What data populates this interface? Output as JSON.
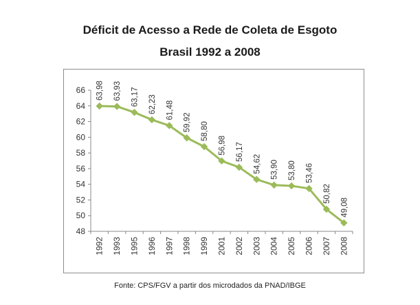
{
  "chart_data": {
    "type": "line",
    "title": "Déficit de Acesso a Rede de Coleta de Esgoto",
    "subtitle": "Brasil 1992 a 2008",
    "categories": [
      "1992",
      "1993",
      "1995",
      "1996",
      "1997",
      "1998",
      "1999",
      "2001",
      "2002",
      "2003",
      "2004",
      "2005",
      "2006",
      "2007",
      "2008"
    ],
    "values": [
      63.98,
      63.93,
      63.17,
      62.23,
      61.48,
      59.92,
      58.8,
      56.98,
      56.17,
      54.62,
      53.9,
      53.8,
      53.46,
      50.82,
      49.08
    ],
    "value_labels": [
      "63,98",
      "63,93",
      "63,17",
      "62,23",
      "61,48",
      "59,92",
      "58,80",
      "56,98",
      "56,17",
      "54,62",
      "53,90",
      "53,80",
      "53,46",
      "50,82",
      "49,08"
    ],
    "ylim": [
      48,
      66
    ],
    "yticks": [
      "48",
      "50",
      "52",
      "54",
      "56",
      "58",
      "60",
      "62",
      "64",
      "66"
    ],
    "grid": false,
    "legend": "none",
    "colors": {
      "series": "#9bbb59",
      "marker": "#9bbb59",
      "axis": "#888888",
      "text": "#333333"
    },
    "source": "Fonte: CPS/FGV a partir dos microdados da PNAD/IBGE"
  }
}
